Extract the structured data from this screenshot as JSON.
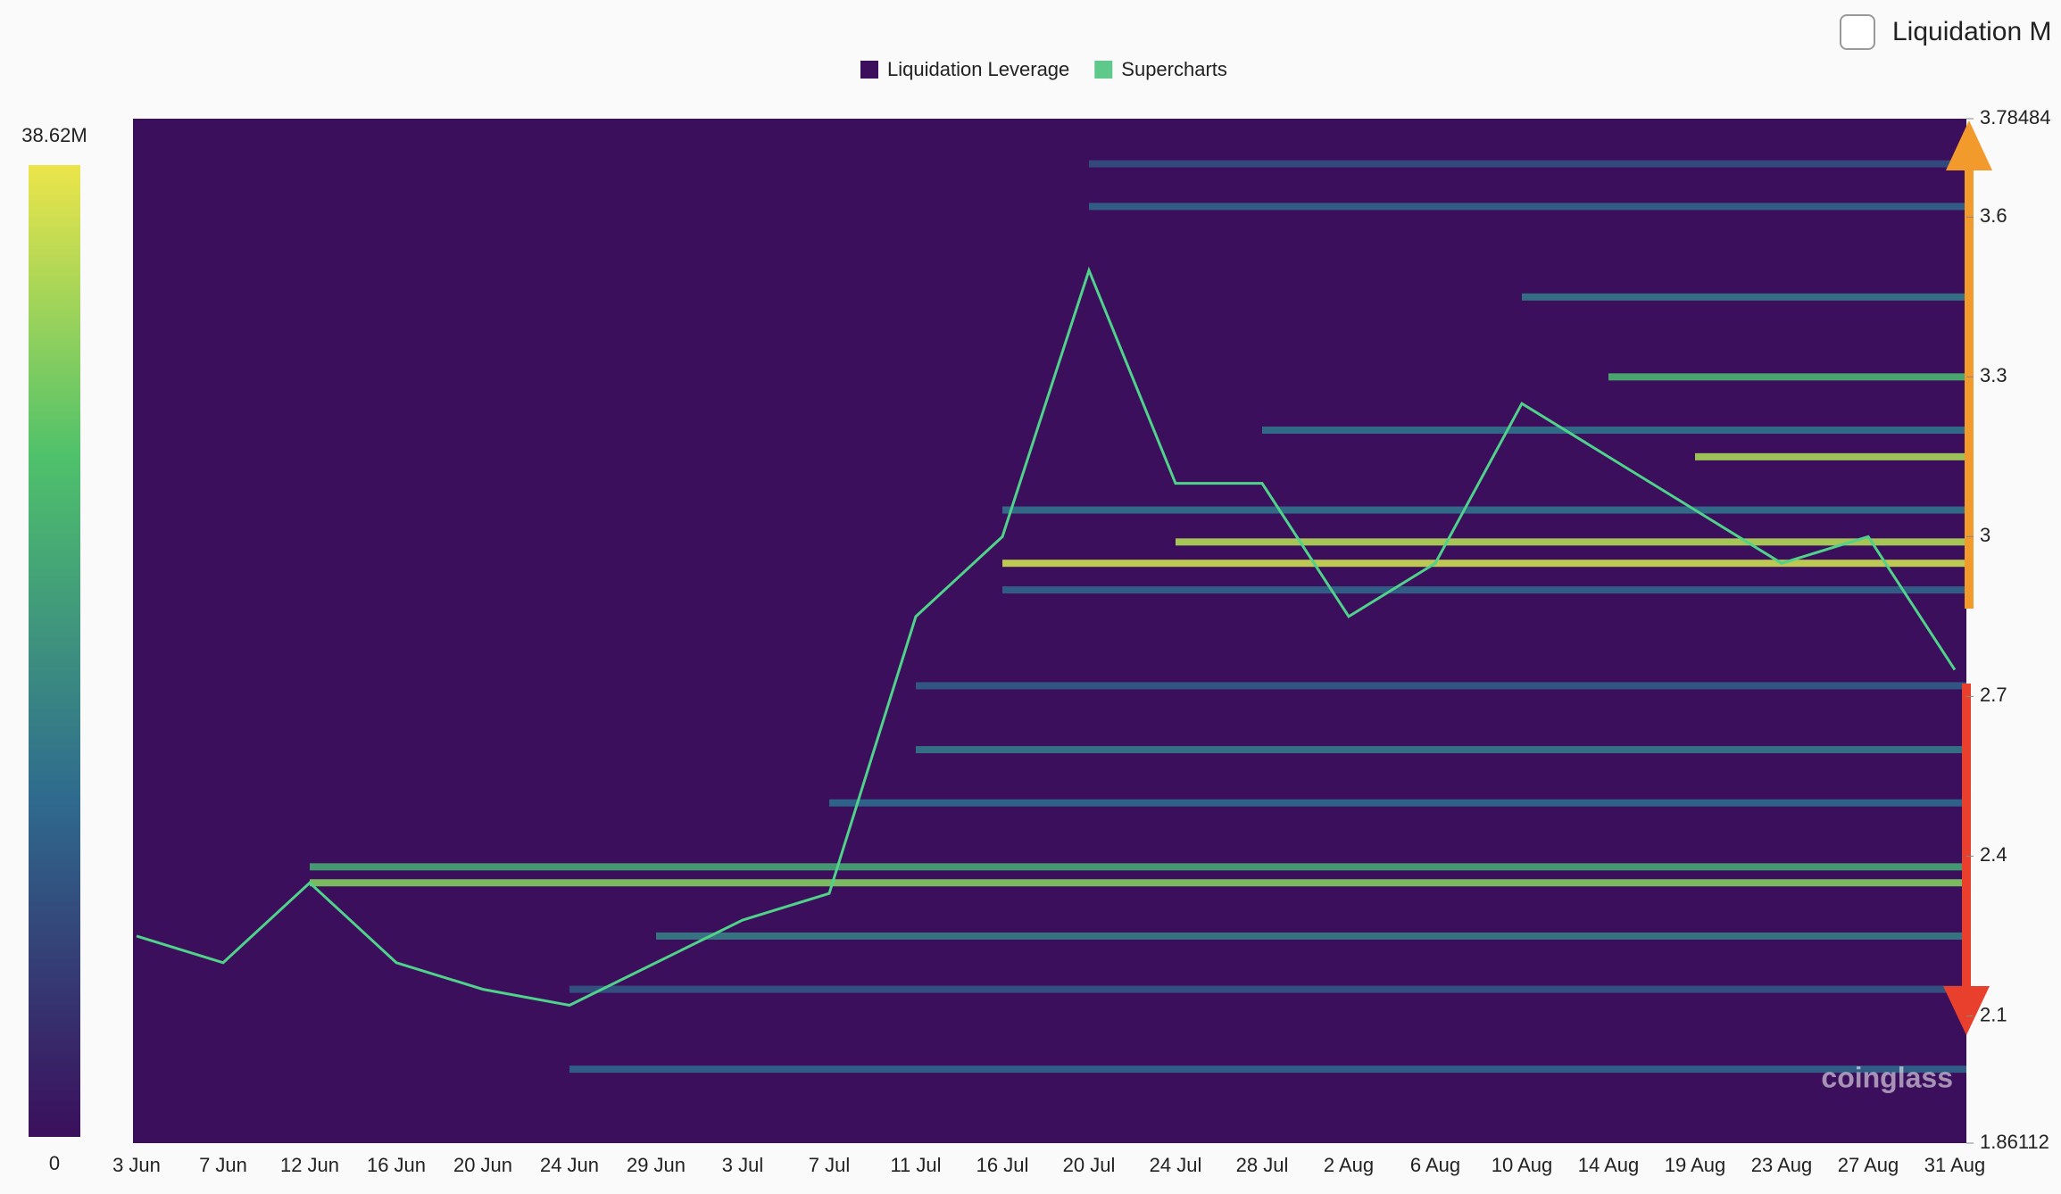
{
  "chart_data": {
    "type": "heatmap",
    "legend": [
      {
        "name": "Liquidation Leverage",
        "color": "#3b0f5c"
      },
      {
        "name": "Supercharts",
        "color": "#5ec98a"
      }
    ],
    "toggle_label": "Liquidation M",
    "watermark": "coinglass",
    "categories": [
      "3 Jun",
      "7 Jun",
      "12 Jun",
      "16 Jun",
      "20 Jun",
      "24 Jun",
      "29 Jun",
      "3 Jul",
      "7 Jul",
      "11 Jul",
      "16 Jul",
      "20 Jul",
      "24 Jul",
      "28 Jul",
      "2 Aug",
      "6 Aug",
      "10 Aug",
      "14 Aug",
      "19 Aug",
      "23 Aug",
      "27 Aug",
      "31 Aug"
    ],
    "price": {
      "name": "Supercharts",
      "color": "#4fd28a",
      "values": [
        2.25,
        2.2,
        2.35,
        2.2,
        2.15,
        2.12,
        2.2,
        2.28,
        2.33,
        2.85,
        3.0,
        3.5,
        3.1,
        3.1,
        2.85,
        2.95,
        3.25,
        3.15,
        3.05,
        2.95,
        3.0,
        2.75
      ]
    },
    "ylim": [
      1.86112,
      3.78484
    ],
    "yticks": [
      1.86112,
      2.1,
      2.4,
      2.7,
      3,
      3.3,
      3.6,
      3.78484
    ],
    "colorbar": {
      "lim": [
        0,
        38620000
      ],
      "ticks": [
        0,
        {
          "value": 38620000,
          "label": "38.62M"
        }
      ]
    },
    "bands": [
      {
        "y": 2.35,
        "value": 30000000,
        "start": "12 Jun"
      },
      {
        "y": 2.38,
        "value": 22000000,
        "start": "12 Jun"
      },
      {
        "y": 2.25,
        "value": 16000000,
        "start": "29 Jun"
      },
      {
        "y": 2.0,
        "value": 12000000,
        "start": "24 Jun"
      },
      {
        "y": 2.15,
        "value": 10000000,
        "start": "24 Jun"
      },
      {
        "y": 2.5,
        "value": 13000000,
        "start": "7 Jul"
      },
      {
        "y": 2.6,
        "value": 15000000,
        "start": "11 Jul"
      },
      {
        "y": 2.72,
        "value": 11000000,
        "start": "11 Jul"
      },
      {
        "y": 2.9,
        "value": 12000000,
        "start": "16 Jul"
      },
      {
        "y": 2.95,
        "value": 36000000,
        "start": "16 Jul"
      },
      {
        "y": 2.99,
        "value": 34000000,
        "start": "24 Jul"
      },
      {
        "y": 3.05,
        "value": 14000000,
        "start": "16 Jul"
      },
      {
        "y": 3.15,
        "value": 33000000,
        "start": "19 Aug"
      },
      {
        "y": 3.2,
        "value": 14000000,
        "start": "28 Jul"
      },
      {
        "y": 3.3,
        "value": 24000000,
        "start": "14 Aug"
      },
      {
        "y": 3.45,
        "value": 15000000,
        "start": "10 Aug"
      },
      {
        "y": 3.62,
        "value": 12000000,
        "start": "20 Jul"
      },
      {
        "y": 3.7,
        "value": 9000000,
        "start": "20 Jul"
      }
    ]
  }
}
